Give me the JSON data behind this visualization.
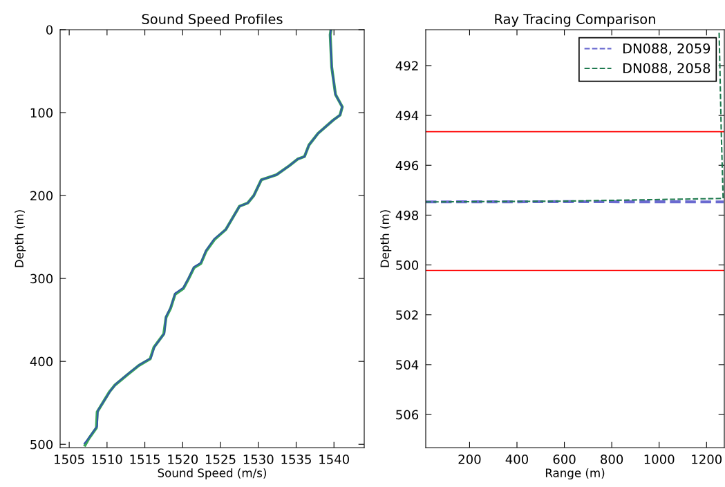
{
  "chart_data": [
    {
      "type": "line",
      "title": "Sound Speed Profiles",
      "xlabel": "Sound Speed (m/s)",
      "ylabel": "Depth (m)",
      "series": [
        {
          "color": "#3aa65a",
          "x": [
            1539.6,
            1539.5,
            1539.7,
            1540.2,
            1541.1,
            1540.8,
            1539.9,
            1537.9,
            1536.7,
            1536.1,
            1535.2,
            1534.1,
            1532.4,
            1530.4,
            1529.4,
            1528.6,
            1527.5,
            1526.6,
            1525.7,
            1524.2,
            1523.1,
            1522.4,
            1521.5,
            1520.8,
            1520.1,
            1519.0,
            1518.4,
            1517.8,
            1517.5,
            1516.2,
            1515.7,
            1514.2,
            1512.7,
            1511.0,
            1510.3,
            1508.7,
            1508.6,
            1507.6,
            1507.1
          ],
          "values": [
            0,
            6,
            45,
            78,
            93,
            103,
            109,
            125,
            139,
            153,
            156,
            164,
            175,
            181,
            200,
            209,
            213,
            227,
            241,
            253,
            267,
            282,
            287,
            300,
            312,
            319,
            336,
            347,
            367,
            383,
            397,
            405,
            416,
            429,
            437,
            461,
            480,
            493,
            501
          ]
        },
        {
          "color": "#3355aa",
          "x": [
            1539.6,
            1539.5,
            1539.7,
            1540.2,
            1541.1,
            1540.8,
            1539.9,
            1537.9,
            1536.7,
            1536.1,
            1535.2,
            1534.1,
            1532.4,
            1530.4,
            1529.4,
            1528.6,
            1527.5,
            1526.6,
            1525.7,
            1524.2,
            1523.1,
            1522.4,
            1521.5,
            1520.8,
            1520.1,
            1519.0,
            1518.4,
            1517.8,
            1517.6,
            1516.3,
            1515.8,
            1514.3,
            1512.9,
            1511.2,
            1510.5,
            1508.8,
            1508.7,
            1507.7,
            1507.0
          ],
          "values": [
            0,
            6,
            45,
            78,
            93,
            103,
            109,
            125,
            139,
            153,
            156,
            164,
            175,
            181,
            200,
            209,
            213,
            227,
            241,
            252,
            266,
            281,
            286,
            299,
            311,
            318,
            335,
            346,
            366,
            382,
            396,
            404,
            414,
            427,
            435,
            459,
            478,
            491,
            499
          ]
        }
      ],
      "xlim": [
        1503.8,
        1544
      ],
      "ylim": [
        504,
        0
      ],
      "xticks": [
        1505,
        1510,
        1515,
        1520,
        1525,
        1530,
        1535,
        1540
      ],
      "yticks": [
        0,
        100,
        200,
        300,
        400,
        500
      ],
      "grid": false,
      "legend": false,
      "line_style": "solid"
    },
    {
      "type": "line",
      "title": "Ray Tracing Comparison",
      "xlabel": "Range (m)",
      "ylabel": "Depth (m)",
      "series": [
        {
          "name": "DN088, 2059",
          "color": "#6a6ad0",
          "x": [
            15,
            600,
            1272
          ],
          "values": [
            497.47,
            497.46,
            497.47
          ]
        },
        {
          "name": "DN088, 2058",
          "color": "#1f7a4f",
          "x": [
            15,
            600,
            1270,
            1262,
            1253
          ],
          "values": [
            497.47,
            497.44,
            497.33,
            494.6,
            490.6
          ]
        }
      ],
      "xlim": [
        15,
        1275
      ],
      "ylim": [
        507.33,
        490.56
      ],
      "xticks": [
        200,
        400,
        600,
        800,
        1000,
        1200
      ],
      "yticks": [
        492,
        494,
        496,
        498,
        500,
        502,
        504,
        506
      ],
      "ref_lines": [
        {
          "axis": "y",
          "value": 494.65,
          "color": "#ff0000"
        },
        {
          "axis": "y",
          "value": 500.22,
          "color": "#ff0000"
        }
      ],
      "grid": false,
      "legend": "top right",
      "line_style": "dashed"
    }
  ]
}
